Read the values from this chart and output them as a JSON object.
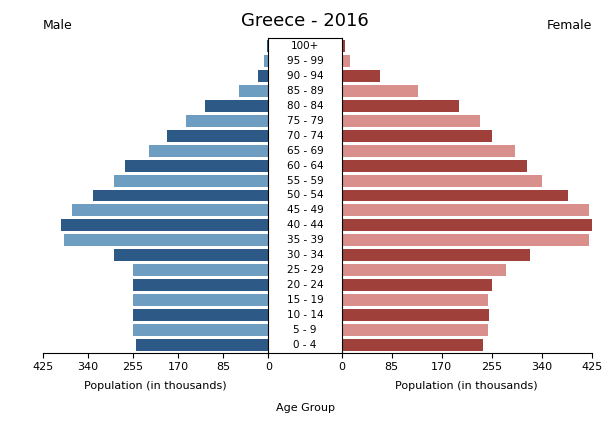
{
  "title": "Greece - 2016",
  "age_groups": [
    "0 - 4",
    "5 - 9",
    "10 - 14",
    "15 - 19",
    "20 - 24",
    "25 - 29",
    "30 - 34",
    "35 - 39",
    "40 - 44",
    "45 - 49",
    "50 - 54",
    "55 - 59",
    "60 - 64",
    "65 - 69",
    "70 - 74",
    "75 - 79",
    "80 - 84",
    "85 - 89",
    "90 - 94",
    "95 - 99",
    "100+"
  ],
  "male": [
    250,
    255,
    255,
    255,
    255,
    255,
    290,
    385,
    390,
    370,
    330,
    290,
    270,
    225,
    190,
    155,
    120,
    55,
    20,
    8,
    3
  ],
  "female": [
    240,
    248,
    250,
    248,
    255,
    280,
    320,
    420,
    425,
    420,
    385,
    340,
    315,
    295,
    255,
    235,
    200,
    130,
    65,
    15,
    5
  ],
  "male_colors": [
    "#2d5986",
    "#6e9dc2",
    "#2d5986",
    "#6e9dc2",
    "#2d5986",
    "#6e9dc2",
    "#2d5986",
    "#6e9dc2",
    "#2d5986",
    "#6e9dc2",
    "#2d5986",
    "#6e9dc2",
    "#2d5986",
    "#6e9dc2",
    "#2d5986",
    "#6e9dc2",
    "#2d5986",
    "#6e9dc2",
    "#2d5986",
    "#6e9dc2",
    "#2d5986"
  ],
  "female_colors": [
    "#a0403a",
    "#d9908c",
    "#a0403a",
    "#d9908c",
    "#a0403a",
    "#d9908c",
    "#a0403a",
    "#d9908c",
    "#a0403a",
    "#d9908c",
    "#a0403a",
    "#d9908c",
    "#a0403a",
    "#d9908c",
    "#a0403a",
    "#d9908c",
    "#a0403a",
    "#d9908c",
    "#a0403a",
    "#d9908c",
    "#a0403a"
  ],
  "xlim": 425,
  "xlabel_left": "Population (in thousands)",
  "xlabel_center": "Age Group",
  "xlabel_right": "Population (in thousands)",
  "label_male": "Male",
  "label_female": "Female",
  "bar_height": 0.8,
  "title_fontsize": 13,
  "tick_fontsize": 8,
  "label_fontsize": 8,
  "age_label_fontsize": 7.5
}
